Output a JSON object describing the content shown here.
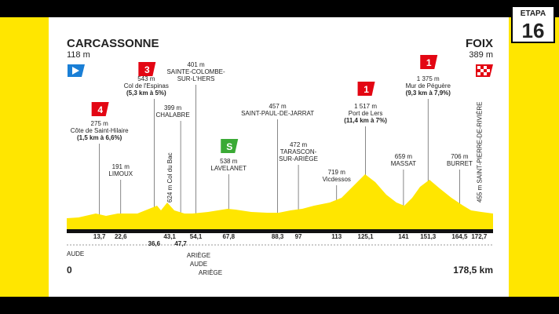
{
  "stage": {
    "label": "ETAPA",
    "number": "16"
  },
  "start": {
    "name": "CARCASSONNE",
    "altitude": "118 m"
  },
  "finish": {
    "name": "FOIX",
    "altitude": "389 m"
  },
  "waypoints": [
    {
      "km": "13,7",
      "category": "4",
      "lines": [
        "275 m",
        "Côte de Saint-Hilaire"
      ],
      "detail": "(1,5 km à 6,6%)"
    },
    {
      "km": "22,6",
      "lines": [
        "191 m",
        "LIMOUX"
      ]
    },
    {
      "km": "36,6",
      "category": "3",
      "lines": [
        "543 m",
        "Col de l'Espinas"
      ],
      "detail": "(5,3 km à 5%)"
    },
    {
      "km": "43,1",
      "lines": [
        "624 m Col du Bac"
      ]
    },
    {
      "km": "47,7",
      "lines": [
        "399 m",
        "CHALABRE"
      ]
    },
    {
      "km": "54,1",
      "lines": [
        "401 m",
        "SAINTE-COLOMBE-",
        "SUR-L'HERS"
      ]
    },
    {
      "km": "67,8",
      "category": "S",
      "lines": [
        "538 m",
        "LAVELANET"
      ]
    },
    {
      "km": "88,3",
      "lines": [
        "457 m",
        "SAINT-PAUL-DE-JARRAT"
      ]
    },
    {
      "km": "97",
      "lines": [
        "472 m",
        "TARASCON-",
        "SUR-ARIÈGE"
      ]
    },
    {
      "km": "113",
      "lines": [
        "719 m",
        "Vicdessos"
      ]
    },
    {
      "km": "125,1",
      "category": "1",
      "lines": [
        "1 517 m",
        "Port de Lers"
      ],
      "detail": "(11,4 km à 7%)"
    },
    {
      "km": "141",
      "lines": [
        "659 m",
        "MASSAT"
      ]
    },
    {
      "km": "151,3",
      "category": "1",
      "lines": [
        "1 375 m",
        "Mur de Péguère"
      ],
      "detail": "(9,3 km à 7,9%)"
    },
    {
      "km": "164,5",
      "lines": [
        "706 m",
        "BURRET"
      ]
    },
    {
      "km": "172,7",
      "lines": [
        "455 m SAINT-PIERRE-DE-RIVIÈRE"
      ]
    }
  ],
  "regions": [
    "AUDE",
    "ARIÈGE",
    "AUDE",
    "ARIÈGE"
  ],
  "distance": {
    "start": "0",
    "end": "178,5 km"
  }
}
